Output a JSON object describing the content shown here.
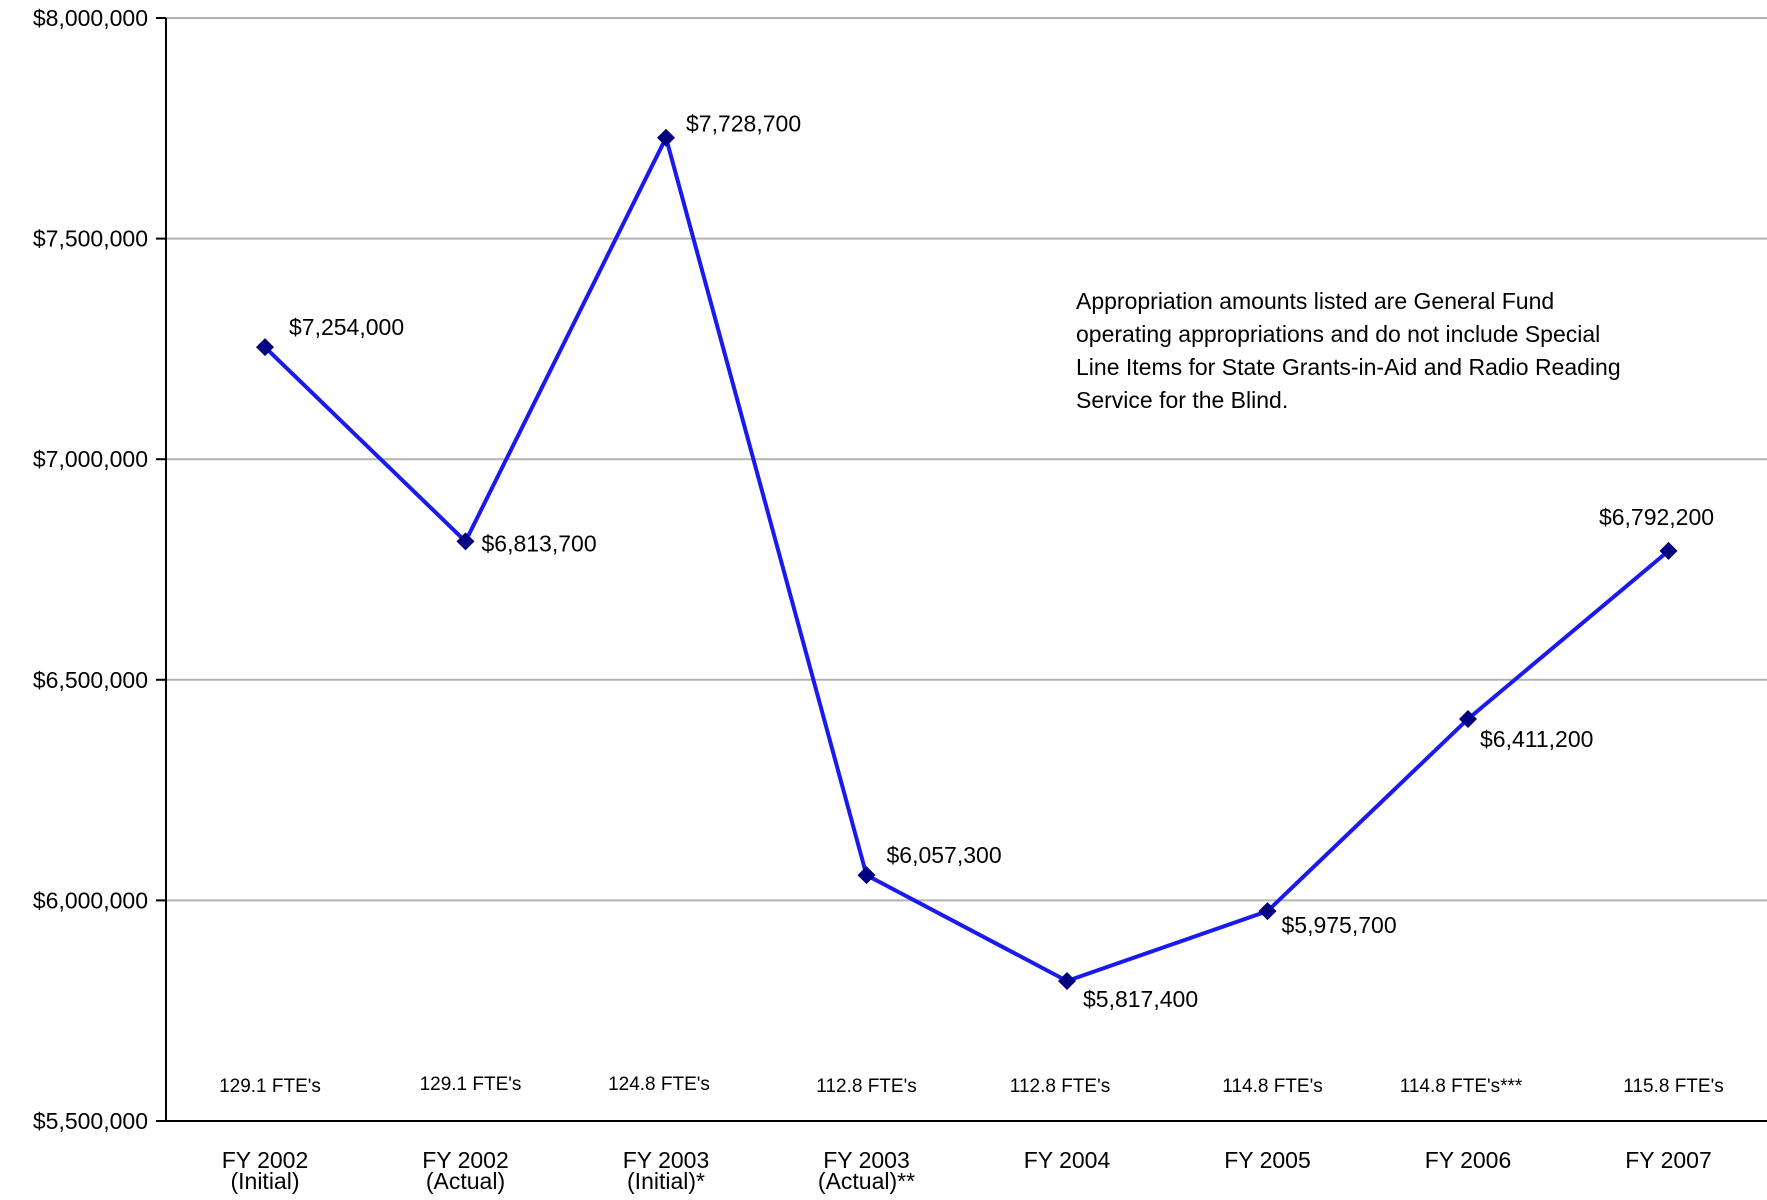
{
  "chart_data": {
    "type": "line",
    "title": "",
    "xlabel": "",
    "ylabel": "",
    "ylim": [
      5500000,
      8000000
    ],
    "y_ticks": [
      5500000,
      6000000,
      6500000,
      7000000,
      7500000,
      8000000
    ],
    "y_tick_labels": [
      "$5,500,000",
      "$6,000,000",
      "$6,500,000",
      "$7,000,000",
      "$7,500,000",
      "$8,000,000"
    ],
    "grid": true,
    "categories": [
      {
        "line1": "FY 2002",
        "line2": "(Initial)"
      },
      {
        "line1": "FY 2002",
        "line2": "(Actual)"
      },
      {
        "line1": "FY 2003",
        "line2": "(Initial)*"
      },
      {
        "line1": "FY 2003",
        "line2": "(Actual)**"
      },
      {
        "line1": "FY 2004",
        "line2": ""
      },
      {
        "line1": "FY 2005",
        "line2": ""
      },
      {
        "line1": "FY 2006",
        "line2": ""
      },
      {
        "line1": "FY 2007",
        "line2": ""
      }
    ],
    "series": [
      {
        "values": [
          7254000,
          6813700,
          7728700,
          6057300,
          5817400,
          5975700,
          6411200,
          6792200
        ],
        "data_labels": [
          "$7,254,000",
          "$6,813,700",
          "$7,728,700",
          "$6,057,300",
          "$5,817,400",
          "$5,975,700",
          "$6,411,200",
          "$6,792,200"
        ],
        "line_color": "#1a1aee",
        "marker_color": "#000080",
        "marker": "diamond"
      }
    ],
    "fte_labels": [
      "129.1 FTE's",
      "129.1 FTE's",
      "124.8 FTE's",
      "112.8 FTE's",
      "112.8 FTE's",
      "114.8 FTE's",
      "114.8  FTE's***",
      "115.8 FTE's"
    ],
    "annotation": [
      "Appropriation amounts listed are General Fund",
      "operating appropriations and do not include Special",
      "Line Items for State Grants-in-Aid and Radio Reading",
      "Service for the Blind."
    ]
  }
}
